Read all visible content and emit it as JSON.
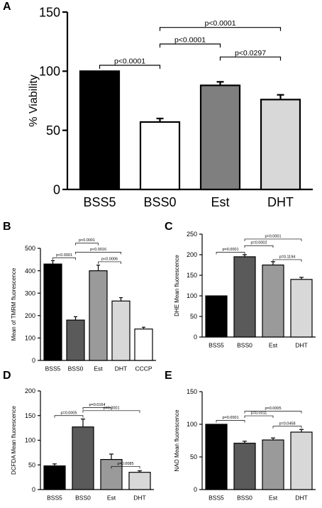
{
  "chart_data": [
    {
      "panel": "A",
      "type": "bar",
      "ylabel": "% Viability",
      "ylim": [
        0,
        150
      ],
      "yticks": [
        0,
        50,
        100,
        150
      ],
      "categories": [
        "BSS5",
        "BSS0",
        "Est",
        "DHT"
      ],
      "values": [
        100,
        57,
        88,
        76
      ],
      "errors": [
        0,
        3,
        3,
        4
      ],
      "colors": [
        "#000000",
        "#ffffff",
        "#7f7f7f",
        "#d8d8d8"
      ],
      "comparisons": [
        {
          "from": 0,
          "to": 1,
          "label": "p<0.0001"
        },
        {
          "from": 1,
          "to": 2,
          "label": "p<0.0001"
        },
        {
          "from": 1,
          "to": 3,
          "label": "p<0.0001"
        },
        {
          "from": 2,
          "to": 3,
          "label": "p<0.0297"
        }
      ]
    },
    {
      "panel": "B",
      "type": "bar",
      "ylabel": "Mean of TMRM fluorescence",
      "ylim": [
        0,
        500
      ],
      "yticks": [
        0,
        100,
        200,
        300,
        400,
        500
      ],
      "categories": [
        "BSS5",
        "BSS0",
        "Est",
        "DHT",
        "CCCP"
      ],
      "values": [
        430,
        180,
        400,
        265,
        140
      ],
      "errors": [
        15,
        15,
        25,
        15,
        8
      ],
      "colors": [
        "#000000",
        "#5a5a5a",
        "#9a9a9a",
        "#d8d8d8",
        "#ffffff"
      ],
      "comparisons": [
        {
          "from": 0,
          "to": 1,
          "label": "p<0.0001"
        },
        {
          "from": 1,
          "to": 2,
          "label": "p<0.0001"
        },
        {
          "from": 1,
          "to": 3,
          "label": "p<0.0016"
        },
        {
          "from": 2,
          "to": 3,
          "label": "p<0.0006"
        }
      ]
    },
    {
      "panel": "C",
      "type": "bar",
      "ylabel": "DHE Mean fluorescence",
      "ylim": [
        0,
        250
      ],
      "yticks": [
        0,
        50,
        100,
        150,
        200,
        250
      ],
      "categories": [
        "BSS5",
        "BSS0",
        "Est",
        "DHT"
      ],
      "values": [
        100,
        195,
        175,
        140
      ],
      "errors": [
        0,
        5,
        8,
        5
      ],
      "colors": [
        "#000000",
        "#5a5a5a",
        "#9a9a9a",
        "#d8d8d8"
      ],
      "comparisons": [
        {
          "from": 0,
          "to": 1,
          "label": "p=0.0001"
        },
        {
          "from": 1,
          "to": 2,
          "label": "p=0.0002"
        },
        {
          "from": 1,
          "to": 3,
          "label": "p=0.0001"
        },
        {
          "from": 2,
          "to": 3,
          "label": "p=0.1194"
        }
      ]
    },
    {
      "panel": "D",
      "type": "bar",
      "ylabel": "DCFDA Mean fluorescence",
      "ylim": [
        0,
        200
      ],
      "yticks": [
        0,
        50,
        100,
        150,
        200
      ],
      "categories": [
        "BSS5",
        "BSS0",
        "Est",
        "DHT"
      ],
      "values": [
        48,
        127,
        61,
        35
      ],
      "errors": [
        4,
        16,
        11,
        3
      ],
      "colors": [
        "#000000",
        "#5a5a5a",
        "#9a9a9a",
        "#d8d8d8"
      ],
      "comparisons": [
        {
          "from": 0,
          "to": 1,
          "label": "p=0.0005"
        },
        {
          "from": 1,
          "to": 2,
          "label": "p=0.0164"
        },
        {
          "from": 1,
          "to": 3,
          "label": "p=0.0001"
        },
        {
          "from": 2,
          "to": 3,
          "label": "p=0.0085"
        }
      ]
    },
    {
      "panel": "E",
      "type": "bar",
      "ylabel": "NAO Mean fluorescence",
      "ylim": [
        0,
        150
      ],
      "yticks": [
        0,
        50,
        100,
        150
      ],
      "categories": [
        "BSS5",
        "BSS0",
        "Est",
        "DHT"
      ],
      "values": [
        100,
        71,
        76,
        88
      ],
      "errors": [
        0,
        3,
        3,
        4
      ],
      "colors": [
        "#000000",
        "#5a5a5a",
        "#9a9a9a",
        "#d8d8d8"
      ],
      "comparisons": [
        {
          "from": 0,
          "to": 1,
          "label": "p=0.0001"
        },
        {
          "from": 1,
          "to": 2,
          "label": "p=0.0011"
        },
        {
          "from": 1,
          "to": 3,
          "label": "p=0.0005"
        },
        {
          "from": 2,
          "to": 3,
          "label": "p=0.0458"
        }
      ]
    }
  ]
}
